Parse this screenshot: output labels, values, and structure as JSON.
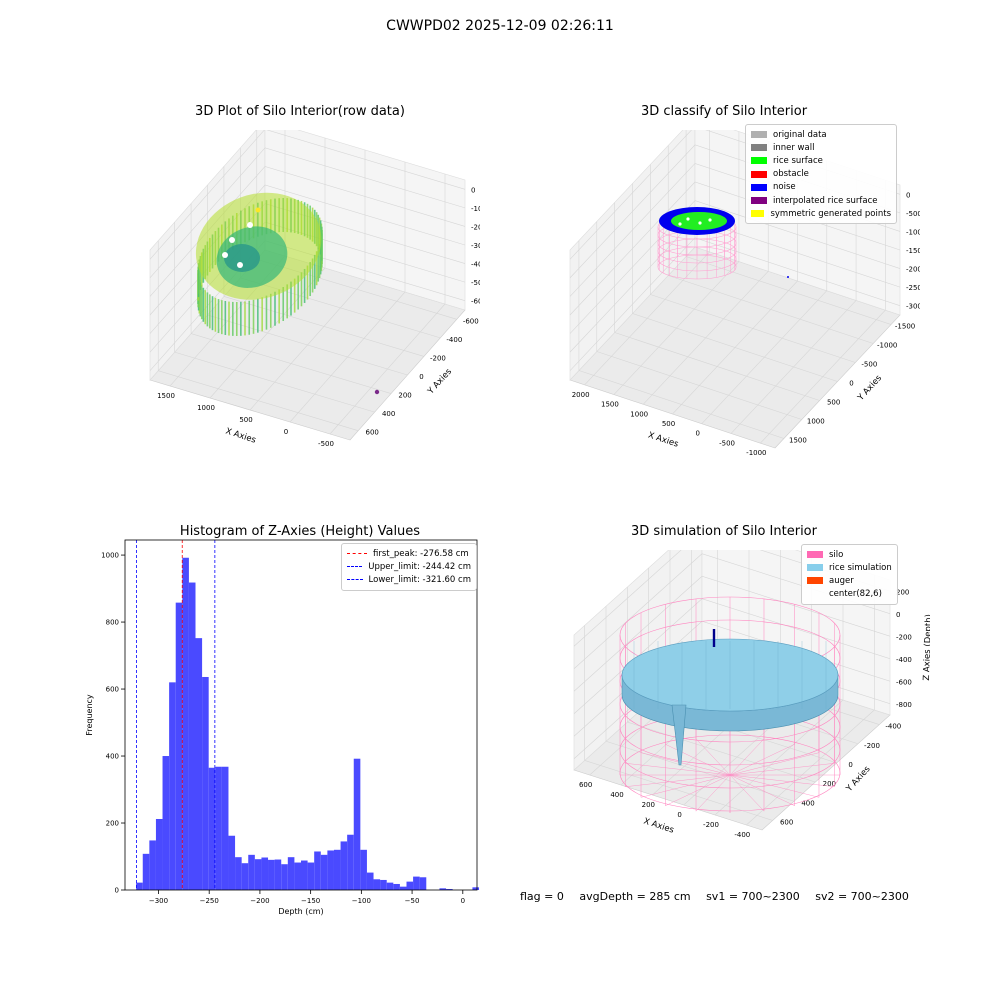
{
  "figure_title": "CWWPD02 2025-12-09 02:26:11",
  "footer": {
    "flag": "flag = 0",
    "avg_depth": "avgDepth = 285 cm",
    "sv1": "sv1 = 700~2300",
    "sv2": "sv2 = 700~2300"
  },
  "chart_data": [
    {
      "type": "scatter",
      "projection": "3d",
      "title": "3D Plot of Silo Interior(row data)",
      "xlabel": "X Axies",
      "ylabel": "Y Axies",
      "zlabel": "Z Axies (Depth)",
      "x_ticks": [
        "-500",
        "0",
        "500",
        "1000",
        "1500"
      ],
      "y_ticks": [
        "600",
        "400",
        "200",
        "0",
        "-200",
        "-400",
        "-600"
      ],
      "z_ticks": [
        "0",
        "-100",
        "-200",
        "-300",
        "-400",
        "-500",
        "-600"
      ],
      "colormap": "viridis"
    },
    {
      "type": "scatter",
      "projection": "3d",
      "title": "3D classify of Silo Interior",
      "xlabel": "X Axies",
      "ylabel": "Y Axies",
      "zlabel": "Z Axies (Depth)",
      "x_ticks": [
        "-1000",
        "-500",
        "0",
        "500",
        "1000",
        "1500",
        "2000"
      ],
      "y_ticks": [
        "1500",
        "1000",
        "500",
        "0",
        "-500",
        "-1000",
        "-1500"
      ],
      "z_ticks": [
        "0",
        "-500",
        "-1000",
        "-1500",
        "-2000",
        "-2500",
        "-3000"
      ],
      "legend": [
        {
          "label": "original data",
          "color": "#b0b0b0"
        },
        {
          "label": "inner wall",
          "color": "#808080"
        },
        {
          "label": "rice surface",
          "color": "#00ff00"
        },
        {
          "label": "obstacle",
          "color": "#ff0000"
        },
        {
          "label": "noise",
          "color": "#0000ff"
        },
        {
          "label": "interpolated rice surface",
          "color": "#800080"
        },
        {
          "label": "symmetric generated points",
          "color": "#ffff00"
        }
      ]
    },
    {
      "type": "bar",
      "subtype": "histogram",
      "title": "Histogram of Z-Axies (Height) Values",
      "xlabel": "Depth (cm)",
      "ylabel": "Frequency",
      "xlim": [
        -333,
        14
      ],
      "ylim": [
        0,
        1045
      ],
      "x_ticks": [
        -300,
        -250,
        -200,
        -150,
        -100,
        -50,
        0
      ],
      "y_ticks": [
        0,
        200,
        400,
        600,
        800,
        1000
      ],
      "bar_color": "#4a4aff",
      "bin_start": -322,
      "bin_width": 6.5,
      "values": [
        22,
        108,
        148,
        212,
        400,
        620,
        858,
        992,
        918,
        752,
        636,
        365,
        368,
        368,
        162,
        98,
        80,
        105,
        92,
        97,
        90,
        91,
        77,
        98,
        82,
        88,
        82,
        115,
        105,
        118,
        120,
        145,
        165,
        392,
        120,
        52,
        32,
        30,
        22,
        18,
        10,
        25,
        40,
        38,
        0,
        0,
        5,
        3,
        0,
        0,
        0,
        8
      ],
      "lines": [
        {
          "label": "first_peak: -276.58 cm",
          "x": -276.58,
          "color": "#ff0000"
        },
        {
          "label": "Upper_limit: -244.42 cm",
          "x": -244.42,
          "color": "#0000ff"
        },
        {
          "label": "Lower_limit: -321.60 cm",
          "x": -321.6,
          "color": "#0000ff"
        }
      ]
    },
    {
      "type": "area",
      "projection": "3d",
      "title": "3D simulation of Silo Interior",
      "xlabel": "X Axies",
      "ylabel": "Y Axies",
      "zlabel": "Z Axies (Depth)",
      "x_ticks": [
        "-400",
        "-200",
        "0",
        "200",
        "400",
        "600"
      ],
      "y_ticks": [
        "600",
        "400",
        "200",
        "0",
        "-200",
        "-400"
      ],
      "z_ticks": [
        "200",
        "0",
        "-200",
        "-400",
        "-600",
        "-800"
      ],
      "legend": [
        {
          "label": "silo",
          "color": "#ff69b4"
        },
        {
          "label": "rice simulation",
          "color": "#87ceeb"
        },
        {
          "label": "auger",
          "color": "#ff4500"
        },
        {
          "label": "center(82,6)",
          "color": ""
        }
      ]
    }
  ]
}
